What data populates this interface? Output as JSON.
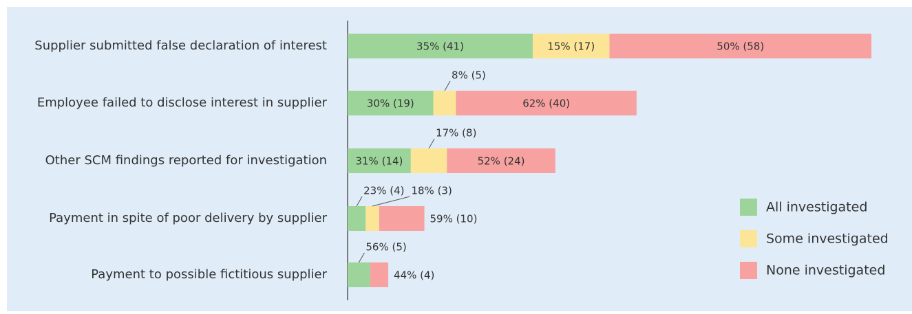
{
  "chart_data": {
    "type": "stacked_bar_horizontal",
    "categories": [
      "Supplier submitted false declaration of interest",
      "Employee failed to disclose interest in supplier",
      "Other SCM findings reported for investigation",
      "Payment in spite of poor delivery by supplier",
      "Payment to possible fictitious supplier"
    ],
    "series": [
      {
        "name": "All investigated",
        "color": "#9dd49a",
        "values": [
          41,
          19,
          14,
          4,
          5
        ],
        "value_labels": [
          "35% (41)",
          "30% (19)",
          "31% (14)",
          "23% (4)",
          "56% (5)"
        ]
      },
      {
        "name": "Some investigated",
        "color": "#fce597",
        "values": [
          17,
          5,
          8,
          3,
          null
        ],
        "value_labels": [
          "15% (17)",
          "8% (5)",
          "17% (8)",
          "18% (3)",
          null
        ]
      },
      {
        "name": "None investigated",
        "color": "#f7a1a1",
        "values": [
          58,
          40,
          24,
          10,
          4
        ],
        "value_labels": [
          "50% (58)",
          "62% (40)",
          "52% (24)",
          "59% (10)",
          "44% (4)"
        ]
      }
    ],
    "legend": "right"
  }
}
